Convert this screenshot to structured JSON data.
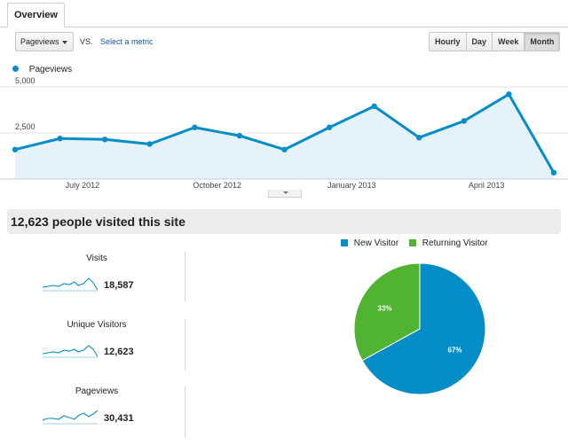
{
  "tab": {
    "label": "Overview"
  },
  "controls": {
    "metric_select": "Pageviews",
    "vs_label": "VS.",
    "select_metric_link": "Select a metric",
    "granularity": [
      {
        "label": "Hourly",
        "active": false
      },
      {
        "label": "Day",
        "active": false
      },
      {
        "label": "Week",
        "active": false
      },
      {
        "label": "Month",
        "active": true
      }
    ]
  },
  "chart_data": {
    "type": "area",
    "series": [
      {
        "name": "Pageviews",
        "color": "#058dc7",
        "values": [
          1600,
          2200,
          2150,
          1900,
          2800,
          2350,
          1600,
          2800,
          3950,
          2250,
          3150,
          4600,
          350
        ]
      }
    ],
    "y_ticks": [
      "5,000",
      "2,500"
    ],
    "ylim": [
      0,
      5000
    ],
    "x_ticks": [
      {
        "label": "July 2012",
        "index": 1.5
      },
      {
        "label": "October 2012",
        "index": 4.5
      },
      {
        "label": "January 2013",
        "index": 7.5
      },
      {
        "label": "April 2013",
        "index": 10.5
      }
    ]
  },
  "summary": {
    "headline": "12,623 people visited this site"
  },
  "metrics": [
    {
      "name": "Visits",
      "value": "18,587"
    },
    {
      "name": "Unique Visitors",
      "value": "12,623"
    },
    {
      "name": "Pageviews",
      "value": "30,431"
    }
  ],
  "pie": {
    "legend": [
      {
        "label": "New Visitor",
        "color": "#058dc7"
      },
      {
        "label": "Returning Visitor",
        "color": "#50b432"
      }
    ],
    "slices": [
      {
        "label": "67%",
        "value": 67,
        "color": "#058dc7"
      },
      {
        "label": "33%",
        "value": 33,
        "color": "#50b432"
      }
    ]
  }
}
